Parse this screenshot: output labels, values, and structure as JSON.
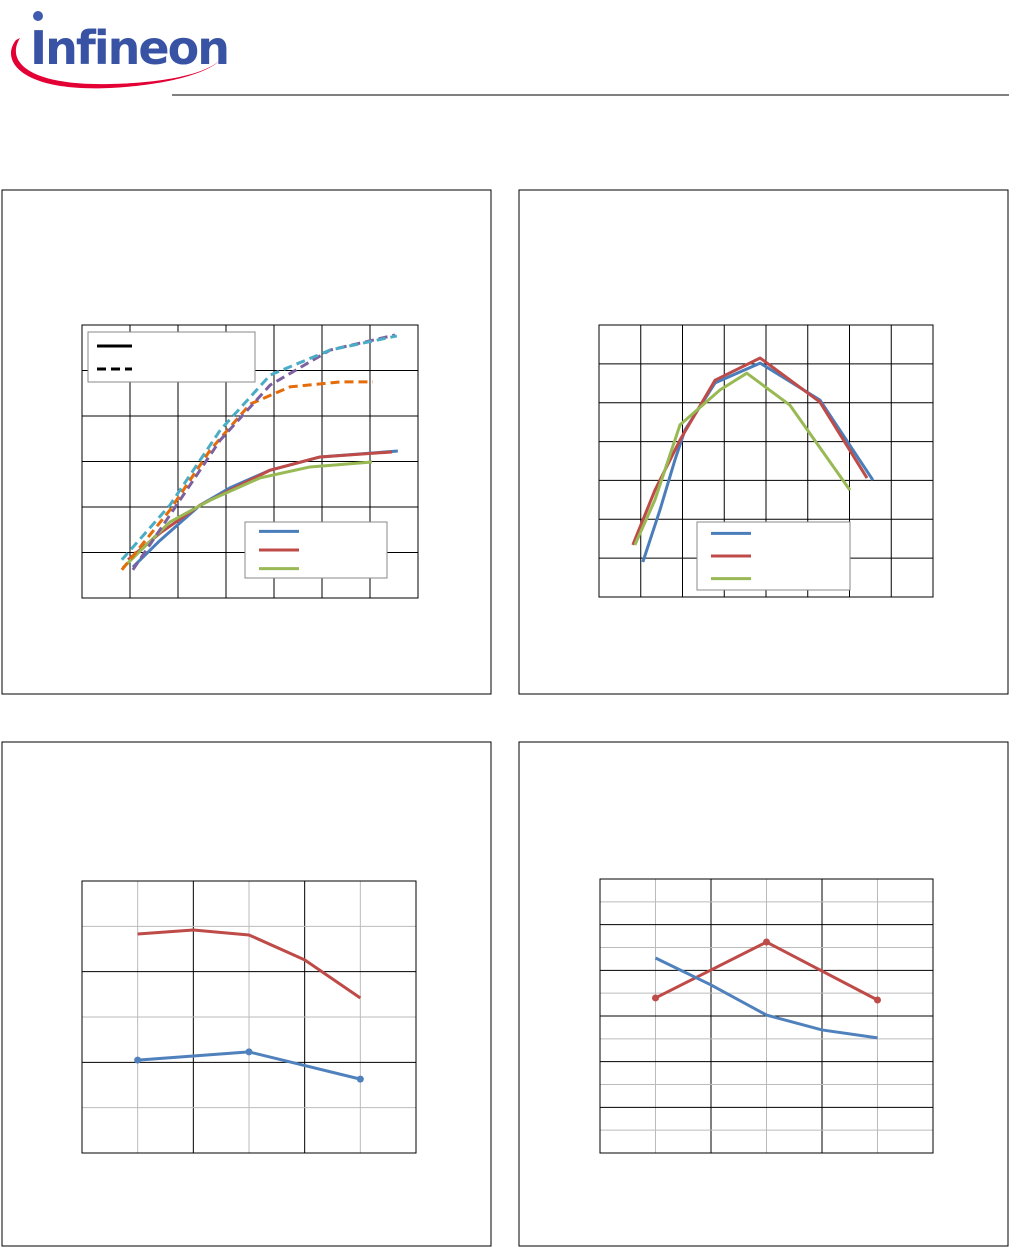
{
  "logo": "Infineon",
  "chart_data": [
    {
      "type": "line",
      "xlim": [
        0,
        7
      ],
      "ylim": [
        0,
        6
      ],
      "xticks": [
        0,
        1,
        2,
        3,
        4,
        5,
        6,
        7
      ],
      "yticks": [
        0,
        1,
        2,
        3,
        4,
        5,
        6
      ],
      "grid": true,
      "major_grid_every": 1,
      "series": [
        {
          "color": "#4a7ebb",
          "dashed": false,
          "x": [
            1.06,
            1.63,
            2.46,
            3.08,
            3.92,
            4.96,
            6.58
          ],
          "values": [
            0.68,
            1.27,
            2.04,
            2.42,
            2.81,
            3.1,
            3.23
          ]
        },
        {
          "color": "#be4b48",
          "dashed": false,
          "x": [
            0.96,
            1.63,
            2.46,
            3.92,
            4.96,
            6.46
          ],
          "values": [
            0.84,
            1.43,
            2.04,
            2.81,
            3.1,
            3.21
          ]
        },
        {
          "color": "#98b954",
          "dashed": false,
          "x": [
            0.85,
            1.83,
            2.67,
            3.71,
            4.75,
            6.04
          ],
          "values": [
            0.66,
            1.67,
            2.15,
            2.64,
            2.88,
            2.99
          ]
        },
        {
          "color": "#e46c0a",
          "dashed": true,
          "x": [
            0.83,
            1.83,
            2.67,
            3.5,
            4.33,
            5.38,
            6.06
          ],
          "values": [
            0.62,
            1.93,
            3.25,
            4.26,
            4.64,
            4.75,
            4.75
          ]
        },
        {
          "color": "#7d60a0",
          "dashed": true,
          "x": [
            1.06,
            1.83,
            2.88,
            3.92,
            5.17,
            6.52
          ],
          "values": [
            0.62,
            1.82,
            3.47,
            4.68,
            5.45,
            5.78
          ]
        },
        {
          "color": "#4bacc6",
          "dashed": true,
          "x": [
            0.83,
            1.83,
            2.88,
            3.92,
            5.17,
            6.56
          ],
          "values": [
            0.84,
            2.04,
            3.69,
            4.9,
            5.45,
            5.76
          ]
        }
      ]
    },
    {
      "type": "line",
      "xlim": [
        0,
        8
      ],
      "ylim": [
        0,
        7
      ],
      "xticks": [
        0,
        1,
        2,
        3,
        4,
        5,
        6,
        7,
        8
      ],
      "yticks": [
        0,
        1,
        2,
        3,
        4,
        5,
        6,
        7
      ],
      "grid": true,
      "major_grid_every": 1,
      "series": [
        {
          "color": "#4a7ebb",
          "dashed": false,
          "x": [
            1.05,
            1.46,
            1.82,
            2.06,
            2.78,
            3.86,
            5.29,
            6.56
          ],
          "values": [
            0.9,
            2.24,
            3.53,
            4.3,
            5.51,
            6.02,
            5.07,
            3.01
          ]
        },
        {
          "color": "#be4b48",
          "dashed": false,
          "x": [
            0.81,
            1.34,
            1.94,
            2.78,
            3.86,
            5.29,
            6.42
          ],
          "values": [
            1.34,
            2.75,
            4.04,
            5.58,
            6.15,
            5.02,
            3.06
          ]
        },
        {
          "color": "#98b954",
          "dashed": false,
          "x": [
            0.86,
            1.34,
            1.94,
            2.9,
            3.54,
            4.57,
            6.01
          ],
          "values": [
            1.34,
            2.5,
            4.43,
            5.33,
            5.76,
            4.94,
            2.75
          ]
        }
      ]
    },
    {
      "type": "line",
      "xlim": [
        0,
        6
      ],
      "ylim": [
        0,
        6
      ],
      "xticks": [
        0,
        1,
        2,
        3,
        4,
        5,
        6
      ],
      "yticks": [
        0,
        1,
        2,
        3,
        4,
        5,
        6
      ],
      "grid": true,
      "major_grid_every": 2,
      "series": [
        {
          "color": "#be4b48",
          "dashed": false,
          "markers": false,
          "x": [
            1,
            2,
            3,
            4,
            5
          ],
          "values": [
            4.83,
            4.92,
            4.81,
            4.26,
            3.42
          ]
        },
        {
          "color": "#4f81bd",
          "dashed": false,
          "markers": true,
          "x": [
            1,
            3,
            5
          ],
          "values": [
            2.05,
            2.23,
            1.63
          ]
        }
      ]
    },
    {
      "type": "line",
      "xlim": [
        0,
        6
      ],
      "ylim": [
        0,
        12
      ],
      "xticks": [
        0,
        1,
        2,
        3,
        4,
        5,
        6
      ],
      "yticks": [
        0,
        1,
        2,
        3,
        4,
        5,
        6,
        7,
        8,
        9,
        10,
        11,
        12
      ],
      "grid": true,
      "major_grid_every": 2,
      "series": [
        {
          "color": "#be4b48",
          "dashed": false,
          "markers": true,
          "x": [
            1,
            3,
            5
          ],
          "values": [
            6.79,
            9.24,
            6.7
          ]
        },
        {
          "color": "#4f81bd",
          "dashed": false,
          "markers": false,
          "x": [
            1,
            2,
            3,
            4,
            5
          ],
          "values": [
            8.54,
            7.36,
            6.04,
            5.39,
            5.04
          ]
        }
      ]
    }
  ]
}
